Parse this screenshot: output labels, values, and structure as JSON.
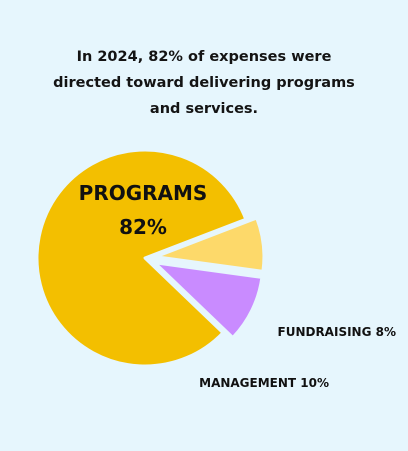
{
  "headline": {
    "line1": "In 2024, 82% of expenses were",
    "line2": "directed toward delivering programs",
    "line3": "and services."
  },
  "chart_data": {
    "type": "pie",
    "title": "In 2024, 82% of expenses were directed toward delivering programs and services.",
    "slices": [
      {
        "name": "PROGRAMS",
        "value": 82,
        "label_line1": "PROGRAMS",
        "label_line2": "82%",
        "color": "#f3bf00",
        "exploded": false
      },
      {
        "name": "FUNDRAISING",
        "value": 8,
        "label_line1": "FUNDRAISING 8%",
        "color": "#fdd96a",
        "exploded": true
      },
      {
        "name": "MANAGEMENT",
        "value": 10,
        "label_line1": "MANAGEMENT 10%",
        "color": "#c98bff",
        "exploded": true
      }
    ]
  }
}
